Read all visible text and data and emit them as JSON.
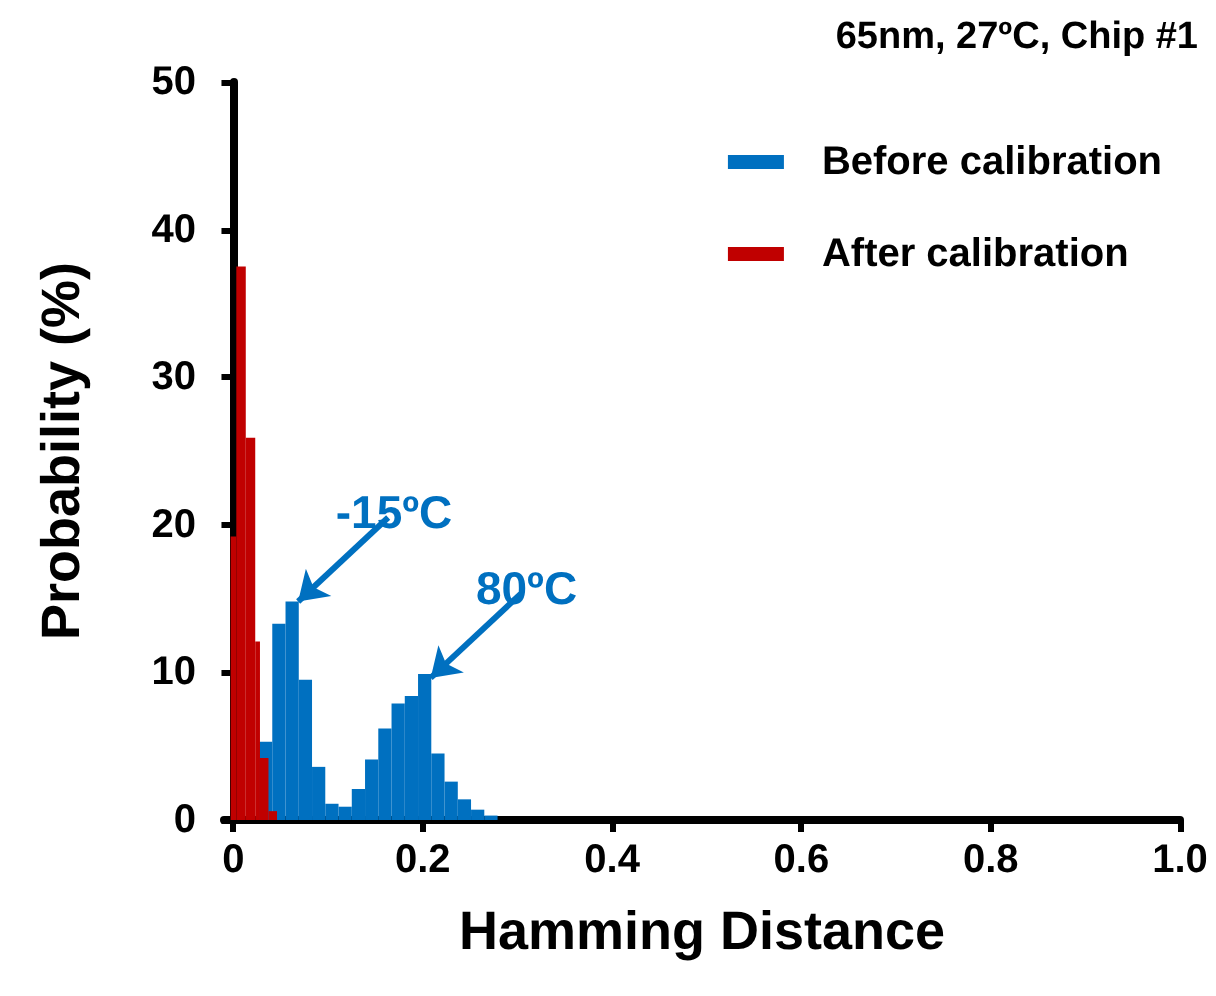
{
  "chart_data": {
    "type": "histogram",
    "title": "65nm, 27ºC, Chip #1",
    "xlabel": "Hamming Distance",
    "ylabel": "Probability (%)",
    "xlim": [
      -0.01,
      1.0
    ],
    "xticks": [
      0,
      0.2,
      0.4,
      0.6,
      0.8,
      {
        "value": 1.0,
        "label": "1.0"
      }
    ],
    "bins": [
      0.027,
      0.041,
      0.055,
      0.069,
      0.083,
      0.097,
      0.111,
      0.125,
      0.139,
      0.153,
      0.167,
      0.181,
      0.195,
      0.209,
      0.223,
      0.237,
      0.251,
      0.265,
      0.279
    ],
    "ylim": [
      0,
      50
    ],
    "yticks": [
      0,
      10,
      20,
      30,
      40,
      50
    ],
    "grid": false,
    "legend": "top right",
    "series": [
      {
        "name": "Before calibration",
        "color": "#0070c0",
        "values": [
          5.3,
          13.3,
          14.8,
          9.5,
          3.6,
          1.1,
          0.9,
          2.1,
          4.1,
          6.2,
          7.9,
          8.4,
          9.9,
          4.5,
          2.6,
          1.4,
          0.7,
          0.3
        ]
      },
      {
        "name": "After calibration",
        "color": "#c00000",
        "bins": [
          -0.003,
          0.003,
          0.013,
          0.023,
          0.028,
          0.037,
          0.046
        ],
        "values": [
          19.2,
          37.5,
          25.9,
          12.1,
          4.2,
          0.6
        ]
      }
    ],
    "annotations": [
      {
        "text": "-15ºC",
        "x": 0.062,
        "y": 14.8
      },
      {
        "text": "80ºC",
        "x": 0.202,
        "y": 9.9
      }
    ]
  }
}
